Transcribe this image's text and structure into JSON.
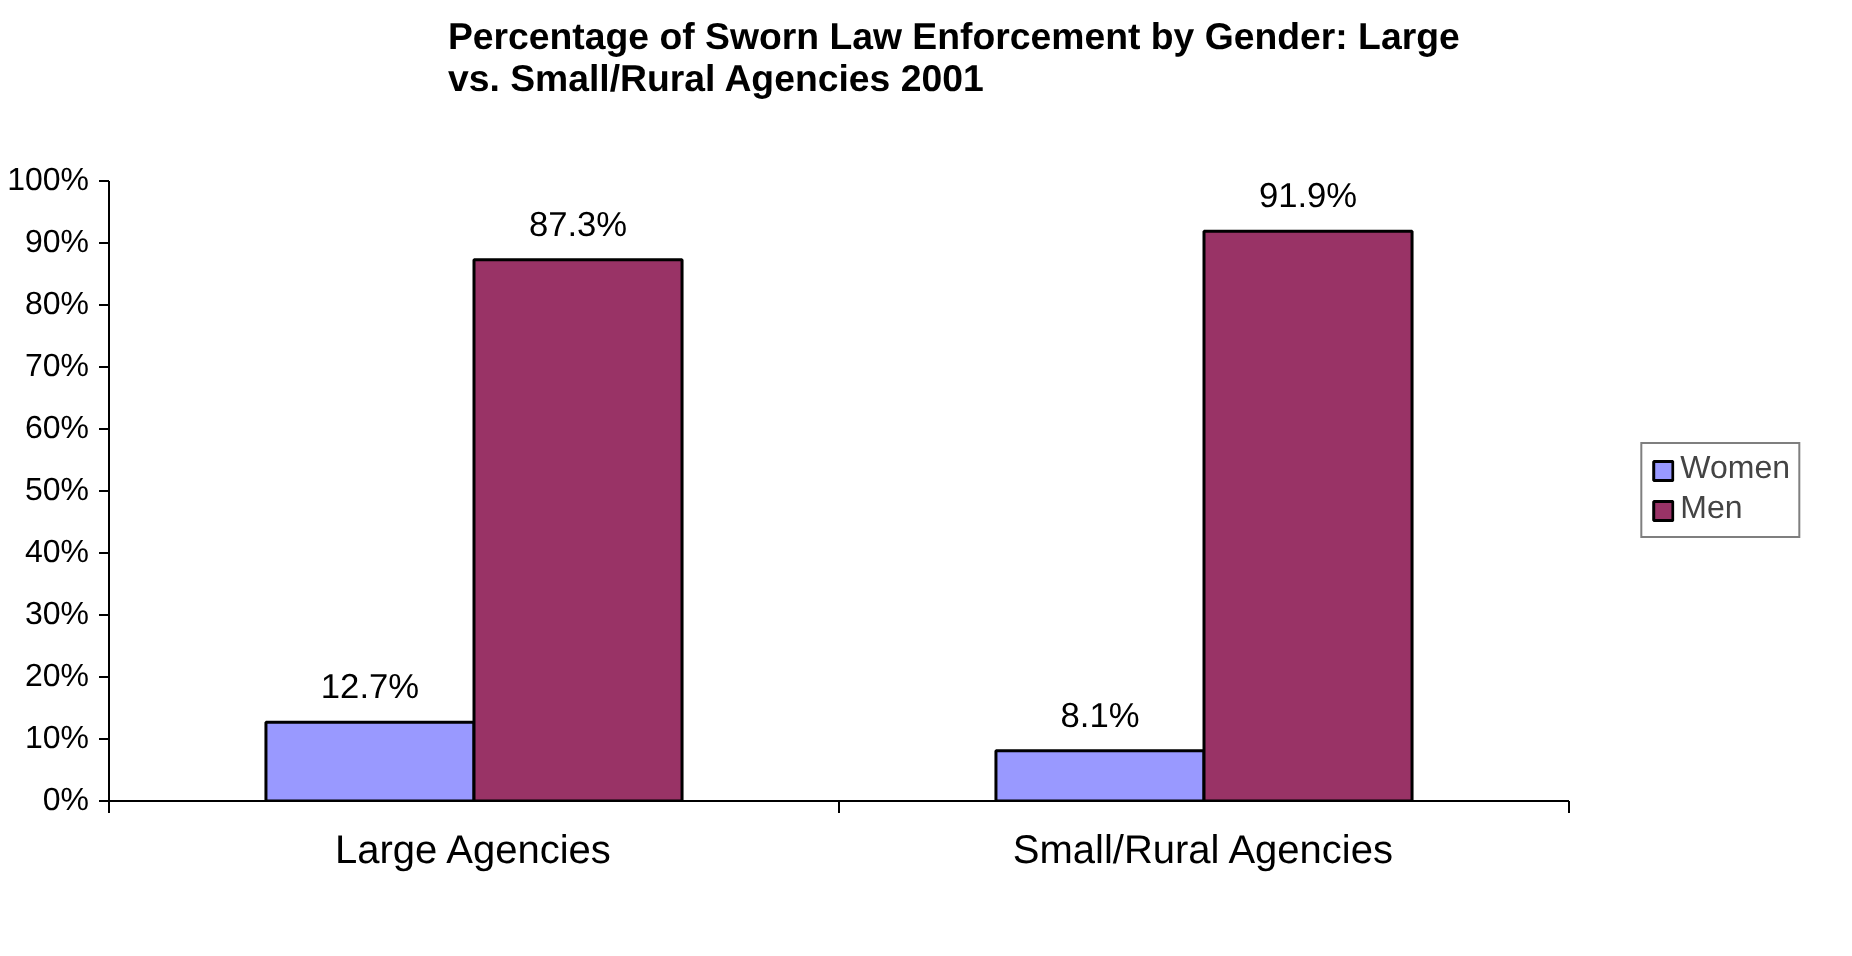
{
  "chart_data": {
    "type": "bar",
    "title": "Percentage of Sworn Law Enforcement by Gender:  Large\nvs. Small/Rural Agencies 2001",
    "categories": [
      "Large Agencies",
      "Small/Rural Agencies"
    ],
    "series": [
      {
        "name": "Women",
        "color": "#9999ff",
        "values": [
          12.7,
          8.1
        ],
        "value_labels": [
          "12.7%",
          "8.1%"
        ]
      },
      {
        "name": "Men",
        "color": "#993366",
        "values": [
          87.3,
          91.9
        ],
        "value_labels": [
          "87.3%",
          "91.9%"
        ]
      }
    ],
    "ylim": [
      0,
      100
    ],
    "yticks": [
      {
        "value": 0,
        "label": "0%"
      },
      {
        "value": 10,
        "label": "10%"
      },
      {
        "value": 20,
        "label": "20%"
      },
      {
        "value": 30,
        "label": "30%"
      },
      {
        "value": 40,
        "label": "40%"
      },
      {
        "value": 50,
        "label": "50%"
      },
      {
        "value": 60,
        "label": "60%"
      },
      {
        "value": 70,
        "label": "70%"
      },
      {
        "value": 80,
        "label": "80%"
      },
      {
        "value": 90,
        "label": "90%"
      },
      {
        "value": 100,
        "label": "100%"
      }
    ],
    "grid": false,
    "legend": "right"
  }
}
